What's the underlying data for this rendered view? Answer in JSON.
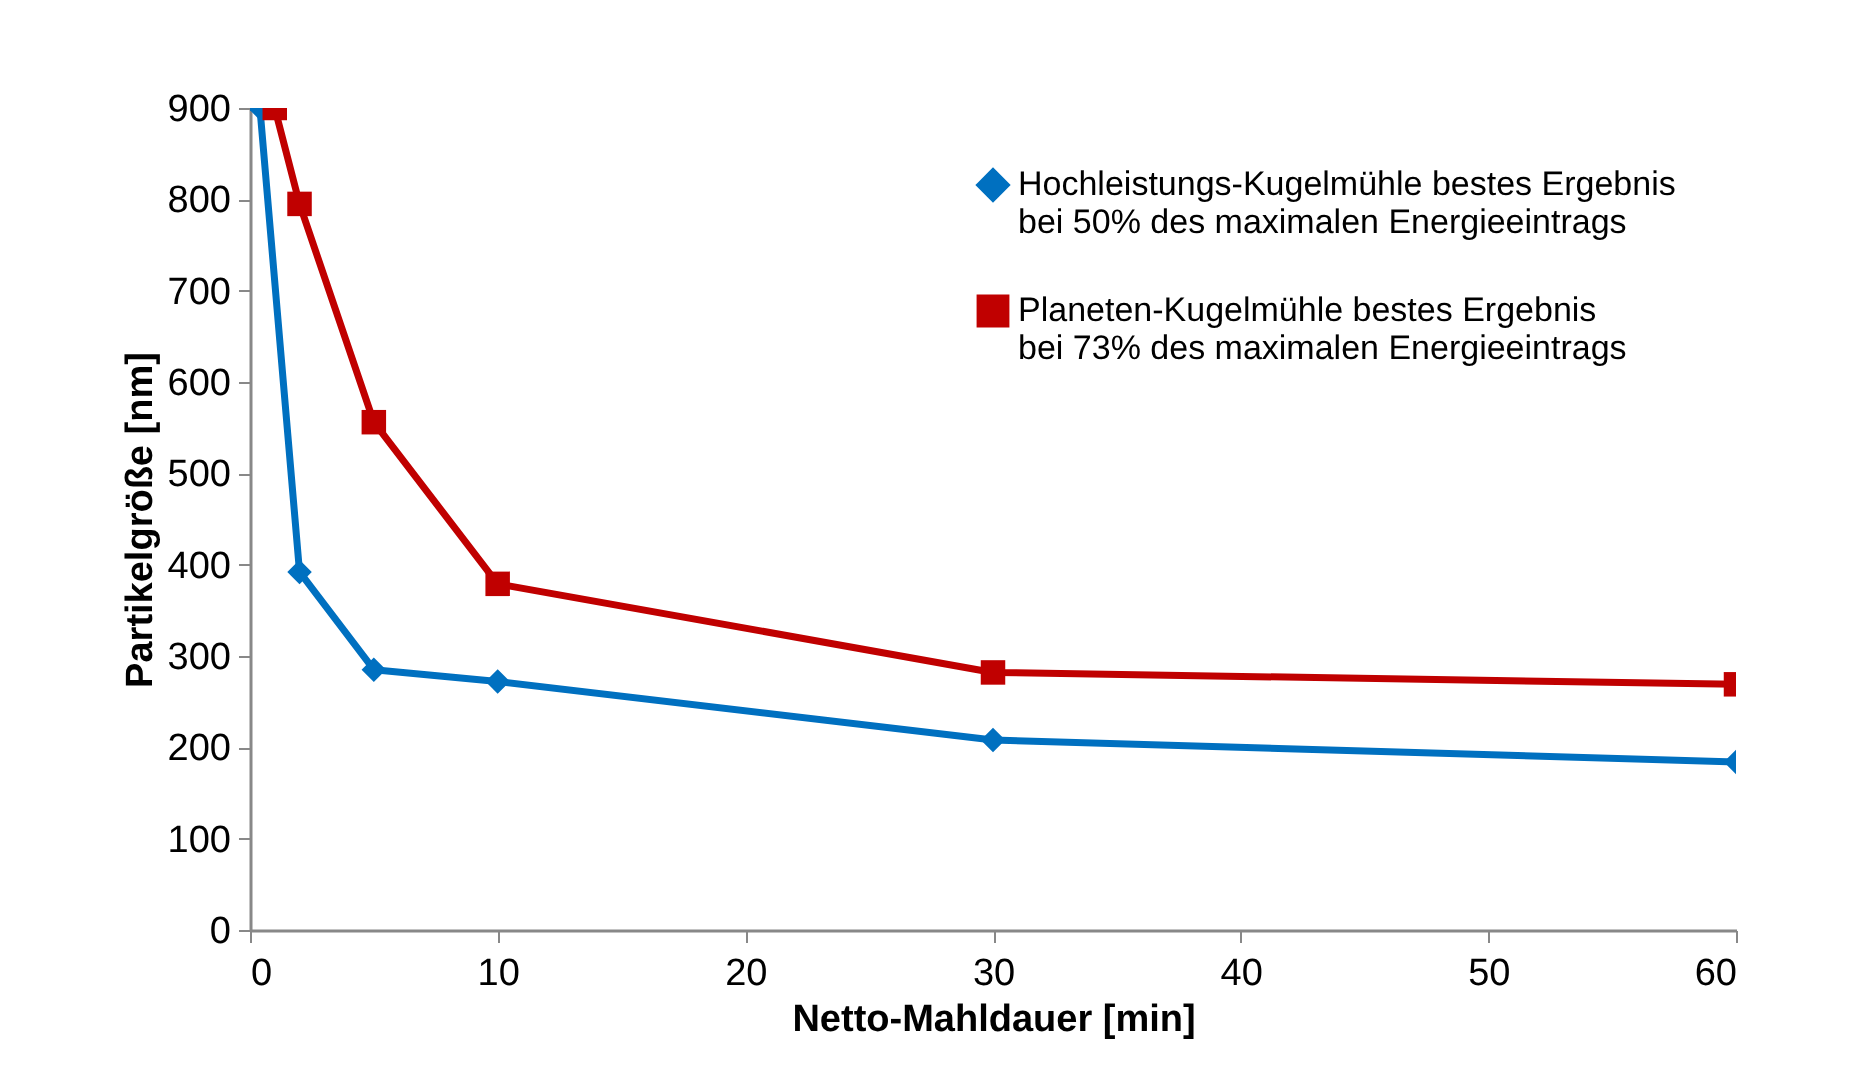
{
  "chart_data": {
    "type": "line",
    "xlabel": "Netto-Mahldauer [min]",
    "ylabel": "Partikelgröße [nm]",
    "xlim": [
      0,
      60
    ],
    "xticks": [
      0,
      10,
      20,
      30,
      40,
      50,
      60
    ],
    "ylim": [
      0,
      900
    ],
    "yticks": [
      0,
      100,
      200,
      300,
      400,
      500,
      600,
      700,
      800,
      900
    ],
    "grid": false,
    "legend": "top right",
    "series": [
      {
        "name": "Hochleistungs-Kugelmühle bestes Ergebnis\nbei 50% des maximalen Energieeintrags",
        "color": "#0070c0",
        "marker": "diamond",
        "x": [
          0.4,
          2,
          5,
          10,
          30,
          60
        ],
        "values": [
          900,
          392,
          285,
          272,
          208,
          184
        ]
      },
      {
        "name": "Planeten-Kugelmühle bestes Ergebnis\nbei 73% des maximalen Energieeintrags",
        "color": "#c00000",
        "marker": "square",
        "x": [
          1,
          2,
          5,
          10,
          30,
          60
        ],
        "values": [
          900,
          795,
          556,
          379,
          282,
          269
        ]
      }
    ]
  }
}
